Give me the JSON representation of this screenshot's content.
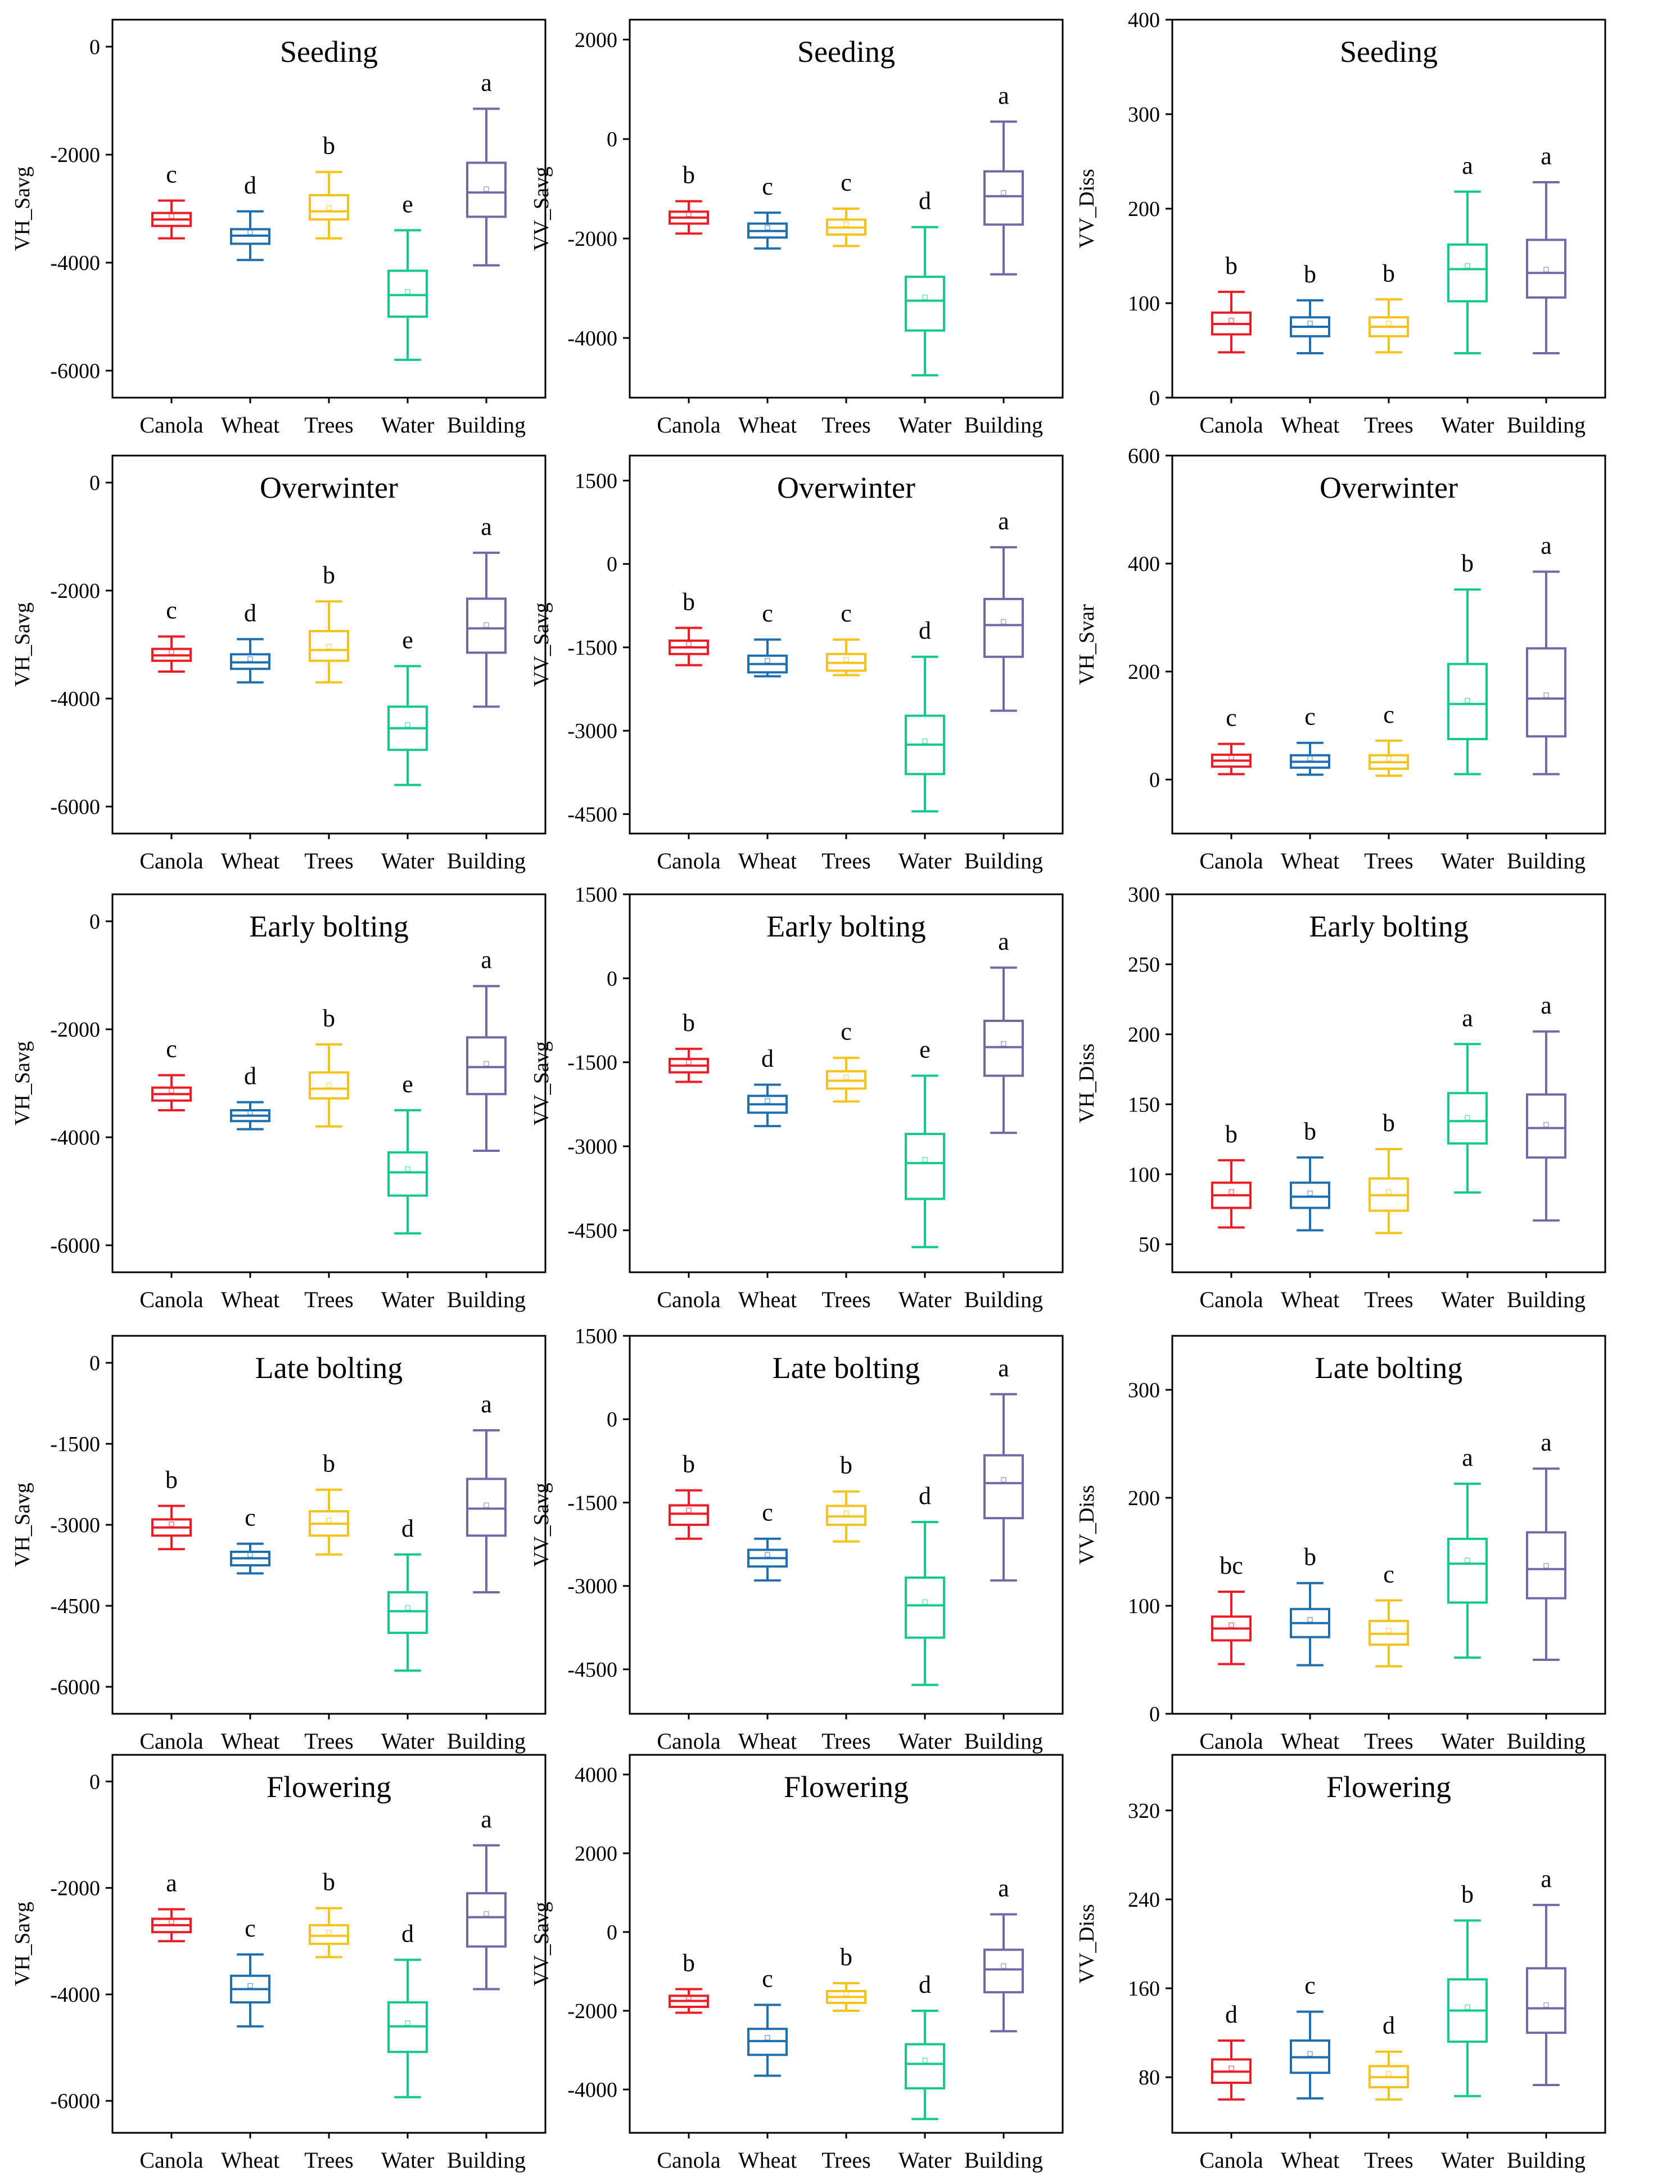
{
  "colors": {
    "Canola": "#ee1c25",
    "Wheat": "#1f6fb0",
    "Trees": "#f7c21a",
    "Water": "#15c98a",
    "Building": "#6e6aa8"
  },
  "chart_data": [
    {
      "id": "r1c1",
      "type": "box",
      "title": "Seeding",
      "ylabel": "VH_Savg",
      "ylim": [
        -6500,
        500
      ],
      "yticks": [
        0,
        -2000,
        -4000,
        -6000
      ],
      "categories": [
        "Canola",
        "Wheat",
        "Trees",
        "Water",
        "Building"
      ],
      "boxes": [
        {
          "min": -3550,
          "q1": -3320,
          "median": -3200,
          "q3": -3080,
          "max": -2850,
          "letter": "c"
        },
        {
          "min": -3950,
          "q1": -3650,
          "median": -3500,
          "q3": -3380,
          "max": -3050,
          "letter": "d"
        },
        {
          "min": -3550,
          "q1": -3200,
          "median": -3050,
          "q3": -2750,
          "max": -2320,
          "letter": "b"
        },
        {
          "min": -5800,
          "q1": -5000,
          "median": -4600,
          "q3": -4150,
          "max": -3400,
          "letter": "e"
        },
        {
          "min": -4050,
          "q1": -3150,
          "median": -2700,
          "q3": -2150,
          "max": -1150,
          "letter": "a"
        }
      ]
    },
    {
      "id": "r1c2",
      "type": "box",
      "title": "Seeding",
      "ylabel": "VV_Savg",
      "ylim": [
        -5200,
        2400
      ],
      "yticks": [
        2000,
        0,
        -2000,
        -4000
      ],
      "categories": [
        "Canola",
        "Wheat",
        "Trees",
        "Water",
        "Building"
      ],
      "boxes": [
        {
          "min": -1900,
          "q1": -1700,
          "median": -1580,
          "q3": -1460,
          "max": -1250,
          "letter": "b"
        },
        {
          "min": -2200,
          "q1": -1980,
          "median": -1850,
          "q3": -1700,
          "max": -1480,
          "letter": "c"
        },
        {
          "min": -2150,
          "q1": -1920,
          "median": -1780,
          "q3": -1620,
          "max": -1400,
          "letter": "c"
        },
        {
          "min": -4750,
          "q1": -3850,
          "median": -3250,
          "q3": -2770,
          "max": -1770,
          "letter": "d"
        },
        {
          "min": -2720,
          "q1": -1720,
          "median": -1150,
          "q3": -650,
          "max": 350,
          "letter": "a"
        }
      ]
    },
    {
      "id": "r1c3",
      "type": "box",
      "title": "Seeding",
      "ylabel": "VV_Diss",
      "ylim": [
        0,
        400
      ],
      "yticks": [
        400,
        300,
        200,
        100,
        0
      ],
      "categories": [
        "Canola",
        "Wheat",
        "Trees",
        "Water",
        "Building"
      ],
      "boxes": [
        {
          "min": 48,
          "q1": 67,
          "median": 78,
          "q3": 90,
          "max": 112,
          "letter": "b"
        },
        {
          "min": 47,
          "q1": 65,
          "median": 75,
          "q3": 85,
          "max": 103,
          "letter": "b"
        },
        {
          "min": 48,
          "q1": 65,
          "median": 75,
          "q3": 85,
          "max": 104,
          "letter": "b"
        },
        {
          "min": 47,
          "q1": 102,
          "median": 136,
          "q3": 162,
          "max": 218,
          "letter": "a"
        },
        {
          "min": 47,
          "q1": 106,
          "median": 132,
          "q3": 167,
          "max": 228,
          "letter": "a"
        }
      ]
    },
    {
      "id": "r2c1",
      "type": "box",
      "title": "Overwinter",
      "ylabel": "VH_Savg",
      "ylim": [
        -6500,
        500
      ],
      "yticks": [
        0,
        -2000,
        -4000,
        -6000
      ],
      "categories": [
        "Canola",
        "Wheat",
        "Trees",
        "Water",
        "Building"
      ],
      "boxes": [
        {
          "min": -3500,
          "q1": -3300,
          "median": -3200,
          "q3": -3080,
          "max": -2850,
          "letter": "c"
        },
        {
          "min": -3700,
          "q1": -3450,
          "median": -3330,
          "q3": -3180,
          "max": -2900,
          "letter": "d"
        },
        {
          "min": -3700,
          "q1": -3300,
          "median": -3100,
          "q3": -2750,
          "max": -2200,
          "letter": "b"
        },
        {
          "min": -5600,
          "q1": -4950,
          "median": -4550,
          "q3": -4150,
          "max": -3400,
          "letter": "e"
        },
        {
          "min": -4150,
          "q1": -3150,
          "median": -2700,
          "q3": -2150,
          "max": -1300,
          "letter": "a"
        }
      ]
    },
    {
      "id": "r2c2",
      "type": "box",
      "title": "Overwinter",
      "ylabel": "VV_Savg",
      "ylim": [
        -4850,
        1950
      ],
      "yticks": [
        1500,
        0,
        -1500,
        -3000,
        -4500
      ],
      "categories": [
        "Canola",
        "Wheat",
        "Trees",
        "Water",
        "Building"
      ],
      "boxes": [
        {
          "min": -1820,
          "q1": -1620,
          "median": -1500,
          "q3": -1380,
          "max": -1150,
          "letter": "b"
        },
        {
          "min": -2020,
          "q1": -1950,
          "median": -1800,
          "q3": -1650,
          "max": -1360,
          "letter": "c"
        },
        {
          "min": -2000,
          "q1": -1920,
          "median": -1780,
          "q3": -1620,
          "max": -1360,
          "letter": "c"
        },
        {
          "min": -4450,
          "q1": -3780,
          "median": -3250,
          "q3": -2730,
          "max": -1670,
          "letter": "d"
        },
        {
          "min": -2640,
          "q1": -1670,
          "median": -1100,
          "q3": -630,
          "max": 300,
          "letter": "a"
        }
      ]
    },
    {
      "id": "r2c3",
      "type": "box",
      "title": "Overwinter",
      "ylabel": "VH_Svar",
      "ylim": [
        -100,
        600
      ],
      "yticks": [
        600,
        400,
        200,
        0
      ],
      "categories": [
        "Canola",
        "Wheat",
        "Trees",
        "Water",
        "Building"
      ],
      "boxes": [
        {
          "min": 10,
          "q1": 24,
          "median": 35,
          "q3": 46,
          "max": 66,
          "letter": "c"
        },
        {
          "min": 9,
          "q1": 22,
          "median": 33,
          "q3": 45,
          "max": 68,
          "letter": "c"
        },
        {
          "min": 7,
          "q1": 20,
          "median": 32,
          "q3": 45,
          "max": 72,
          "letter": "c"
        },
        {
          "min": 10,
          "q1": 75,
          "median": 140,
          "q3": 214,
          "max": 352,
          "letter": "b"
        },
        {
          "min": 10,
          "q1": 80,
          "median": 150,
          "q3": 243,
          "max": 385,
          "letter": "a"
        }
      ]
    },
    {
      "id": "r3c1",
      "type": "box",
      "title": "Early bolting",
      "ylabel": "VH_Savg",
      "ylim": [
        -6500,
        500
      ],
      "yticks": [
        0,
        -2000,
        -4000,
        -6000
      ],
      "categories": [
        "Canola",
        "Wheat",
        "Trees",
        "Water",
        "Building"
      ],
      "boxes": [
        {
          "min": -3500,
          "q1": -3320,
          "median": -3200,
          "q3": -3080,
          "max": -2850,
          "letter": "c"
        },
        {
          "min": -3850,
          "q1": -3700,
          "median": -3600,
          "q3": -3500,
          "max": -3350,
          "letter": "d"
        },
        {
          "min": -3800,
          "q1": -3280,
          "median": -3100,
          "q3": -2800,
          "max": -2280,
          "letter": "b"
        },
        {
          "min": -5780,
          "q1": -5080,
          "median": -4650,
          "q3": -4280,
          "max": -3500,
          "letter": "e"
        },
        {
          "min": -4250,
          "q1": -3200,
          "median": -2700,
          "q3": -2150,
          "max": -1200,
          "letter": "a"
        }
      ]
    },
    {
      "id": "r3c2",
      "type": "box",
      "title": "Early bolting",
      "ylabel": "VV_Savg",
      "ylim": [
        -5250,
        1500
      ],
      "yticks": [
        1500,
        0,
        -1500,
        -3000,
        -4500
      ],
      "categories": [
        "Canola",
        "Wheat",
        "Trees",
        "Water",
        "Building"
      ],
      "boxes": [
        {
          "min": -1850,
          "q1": -1680,
          "median": -1560,
          "q3": -1440,
          "max": -1260,
          "letter": "b"
        },
        {
          "min": -2640,
          "q1": -2400,
          "median": -2250,
          "q3": -2100,
          "max": -1900,
          "letter": "d"
        },
        {
          "min": -2200,
          "q1": -1970,
          "median": -1830,
          "q3": -1660,
          "max": -1420,
          "letter": "c"
        },
        {
          "min": -4800,
          "q1": -3940,
          "median": -3300,
          "q3": -2780,
          "max": -1740,
          "letter": "e"
        },
        {
          "min": -2760,
          "q1": -1740,
          "median": -1230,
          "q3": -760,
          "max": 190,
          "letter": "a"
        }
      ]
    },
    {
      "id": "r3c3",
      "type": "box",
      "title": "Early bolting",
      "ylabel": "VH_Diss",
      "ylim": [
        30,
        300
      ],
      "yticks": [
        300,
        250,
        200,
        150,
        100,
        50
      ],
      "categories": [
        "Canola",
        "Wheat",
        "Trees",
        "Water",
        "Building"
      ],
      "boxes": [
        {
          "min": 62,
          "q1": 76,
          "median": 85,
          "q3": 94,
          "max": 110,
          "letter": "b"
        },
        {
          "min": 60,
          "q1": 76,
          "median": 84,
          "q3": 94,
          "max": 112,
          "letter": "b"
        },
        {
          "min": 58,
          "q1": 74,
          "median": 85,
          "q3": 97,
          "max": 118,
          "letter": "b"
        },
        {
          "min": 87,
          "q1": 122,
          "median": 138,
          "q3": 158,
          "max": 193,
          "letter": "a"
        },
        {
          "min": 67,
          "q1": 112,
          "median": 133,
          "q3": 157,
          "max": 202,
          "letter": "a"
        }
      ]
    },
    {
      "id": "r4c1",
      "type": "box",
      "title": "Late bolting",
      "ylabel": "VH_Savg",
      "ylim": [
        -6500,
        500
      ],
      "yticks": [
        0,
        -1500,
        -3000,
        -4500,
        -6000
      ],
      "categories": [
        "Canola",
        "Wheat",
        "Trees",
        "Water",
        "Building"
      ],
      "boxes": [
        {
          "min": -3450,
          "q1": -3200,
          "median": -3050,
          "q3": -2900,
          "max": -2650,
          "letter": "b"
        },
        {
          "min": -3900,
          "q1": -3750,
          "median": -3620,
          "q3": -3500,
          "max": -3350,
          "letter": "c"
        },
        {
          "min": -3550,
          "q1": -3200,
          "median": -2980,
          "q3": -2750,
          "max": -2350,
          "letter": "b"
        },
        {
          "min": -5700,
          "q1": -5000,
          "median": -4600,
          "q3": -4250,
          "max": -3550,
          "letter": "d"
        },
        {
          "min": -4250,
          "q1": -3200,
          "median": -2700,
          "q3": -2150,
          "max": -1250,
          "letter": "a"
        }
      ]
    },
    {
      "id": "r4c2",
      "type": "box",
      "title": "Late bolting",
      "ylabel": "VV_Savg",
      "ylim": [
        -5300,
        1500
      ],
      "yticks": [
        1500,
        0,
        -1500,
        -3000,
        -4500
      ],
      "categories": [
        "Canola",
        "Wheat",
        "Trees",
        "Water",
        "Building"
      ],
      "boxes": [
        {
          "min": -2150,
          "q1": -1900,
          "median": -1700,
          "q3": -1550,
          "max": -1280,
          "letter": "b"
        },
        {
          "min": -2900,
          "q1": -2650,
          "median": -2500,
          "q3": -2350,
          "max": -2150,
          "letter": "c"
        },
        {
          "min": -2200,
          "q1": -1900,
          "median": -1750,
          "q3": -1560,
          "max": -1300,
          "letter": "b"
        },
        {
          "min": -4780,
          "q1": -3930,
          "median": -3350,
          "q3": -2850,
          "max": -1850,
          "letter": "d"
        },
        {
          "min": -2900,
          "q1": -1780,
          "median": -1150,
          "q3": -650,
          "max": 450,
          "letter": "a"
        }
      ]
    },
    {
      "id": "r4c3",
      "type": "box",
      "title": "Late bolting",
      "ylabel": "VV_Diss",
      "ylim": [
        0,
        350
      ],
      "yticks": [
        300,
        200,
        100,
        0
      ],
      "categories": [
        "Canola",
        "Wheat",
        "Trees",
        "Water",
        "Building"
      ],
      "boxes": [
        {
          "min": 46,
          "q1": 68,
          "median": 79,
          "q3": 90,
          "max": 113,
          "letter": "bc"
        },
        {
          "min": 45,
          "q1": 71,
          "median": 84,
          "q3": 97,
          "max": 121,
          "letter": "b"
        },
        {
          "min": 44,
          "q1": 64,
          "median": 74,
          "q3": 86,
          "max": 105,
          "letter": "c"
        },
        {
          "min": 52,
          "q1": 103,
          "median": 139,
          "q3": 162,
          "max": 213,
          "letter": "a"
        },
        {
          "min": 50,
          "q1": 107,
          "median": 134,
          "q3": 168,
          "max": 227,
          "letter": "a"
        }
      ]
    },
    {
      "id": "r5c1",
      "type": "box",
      "title": "Flowering",
      "ylabel": "VH_Savg",
      "ylim": [
        -6600,
        500
      ],
      "yticks": [
        0,
        -2000,
        -4000,
        -6000
      ],
      "categories": [
        "Canola",
        "Wheat",
        "Trees",
        "Water",
        "Building"
      ],
      "boxes": [
        {
          "min": -3000,
          "q1": -2830,
          "median": -2700,
          "q3": -2580,
          "max": -2400,
          "letter": "a"
        },
        {
          "min": -4600,
          "q1": -4150,
          "median": -3900,
          "q3": -3650,
          "max": -3250,
          "letter": "c"
        },
        {
          "min": -3300,
          "q1": -3050,
          "median": -2900,
          "q3": -2700,
          "max": -2380,
          "letter": "b"
        },
        {
          "min": -5930,
          "q1": -5080,
          "median": -4600,
          "q3": -4150,
          "max": -3350,
          "letter": "d"
        },
        {
          "min": -3900,
          "q1": -3100,
          "median": -2550,
          "q3": -2100,
          "max": -1200,
          "letter": "a"
        }
      ]
    },
    {
      "id": "r5c2",
      "type": "box",
      "title": "Flowering",
      "ylabel": "VV_Savg",
      "ylim": [
        -5100,
        4500
      ],
      "yticks": [
        4000,
        2000,
        0,
        -2000,
        -4000
      ],
      "categories": [
        "Canola",
        "Wheat",
        "Trees",
        "Water",
        "Building"
      ],
      "boxes": [
        {
          "min": -2050,
          "q1": -1900,
          "median": -1750,
          "q3": -1620,
          "max": -1450,
          "letter": "b"
        },
        {
          "min": -3650,
          "q1": -3120,
          "median": -2770,
          "q3": -2460,
          "max": -1850,
          "letter": "c"
        },
        {
          "min": -2000,
          "q1": -1800,
          "median": -1650,
          "q3": -1500,
          "max": -1300,
          "letter": "b"
        },
        {
          "min": -4750,
          "q1": -3970,
          "median": -3350,
          "q3": -2850,
          "max": -2000,
          "letter": "d"
        },
        {
          "min": -2520,
          "q1": -1530,
          "median": -950,
          "q3": -450,
          "max": 450,
          "letter": "a"
        }
      ]
    },
    {
      "id": "r5c3",
      "type": "box",
      "title": "Flowering",
      "ylabel": "VV_Diss",
      "ylim": [
        30,
        370
      ],
      "yticks": [
        320,
        240,
        160,
        80
      ],
      "categories": [
        "Canola",
        "Wheat",
        "Trees",
        "Water",
        "Building"
      ],
      "boxes": [
        {
          "min": 60,
          "q1": 75,
          "median": 85,
          "q3": 96,
          "max": 113,
          "letter": "d"
        },
        {
          "min": 61,
          "q1": 84,
          "median": 98,
          "q3": 113,
          "max": 139,
          "letter": "c"
        },
        {
          "min": 60,
          "q1": 71,
          "median": 80,
          "q3": 90,
          "max": 103,
          "letter": "d"
        },
        {
          "min": 63,
          "q1": 112,
          "median": 140,
          "q3": 168,
          "max": 221,
          "letter": "b"
        },
        {
          "min": 73,
          "q1": 120,
          "median": 142,
          "q3": 178,
          "max": 235,
          "letter": "a"
        }
      ]
    }
  ]
}
